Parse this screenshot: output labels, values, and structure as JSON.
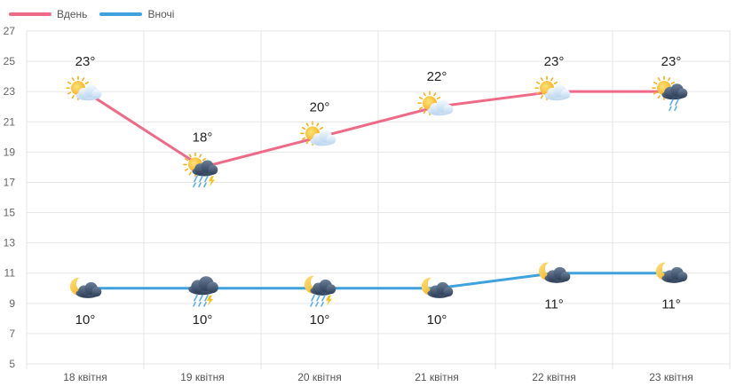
{
  "chart_data": {
    "type": "line",
    "categories": [
      "18 квітня",
      "19 квітня",
      "20 квітня",
      "21 квітня",
      "22 квітня",
      "23 квітня"
    ],
    "series": [
      {
        "name": "Вдень",
        "color": "#ee6a86",
        "values": [
          23,
          18,
          20,
          22,
          23,
          23
        ],
        "labels": [
          "23°",
          "18°",
          "20°",
          "22°",
          "23°",
          "23°"
        ],
        "icons": [
          "sun-cloud-icon",
          "sun-storm-icon",
          "sun-cloud-icon",
          "sun-cloud-icon",
          "sun-cloud-icon",
          "sun-rain-icon"
        ]
      },
      {
        "name": "Вночі",
        "color": "#3fa1dd",
        "values": [
          10,
          10,
          10,
          10,
          11,
          11
        ],
        "labels": [
          "10°",
          "10°",
          "10°",
          "10°",
          "11°",
          "11°"
        ],
        "icons": [
          "moon-cloud-icon",
          "rain-cloud-icon",
          "moon-storm-icon",
          "moon-cloud-icon",
          "moon-cloud-icon",
          "moon-cloud-icon"
        ]
      }
    ],
    "yticks": [
      "5",
      "7",
      "9",
      "11",
      "13",
      "15",
      "17",
      "19",
      "21",
      "23",
      "25",
      "27"
    ],
    "ylim": [
      5,
      27
    ],
    "grid": true,
    "legend_position": "top-left"
  }
}
